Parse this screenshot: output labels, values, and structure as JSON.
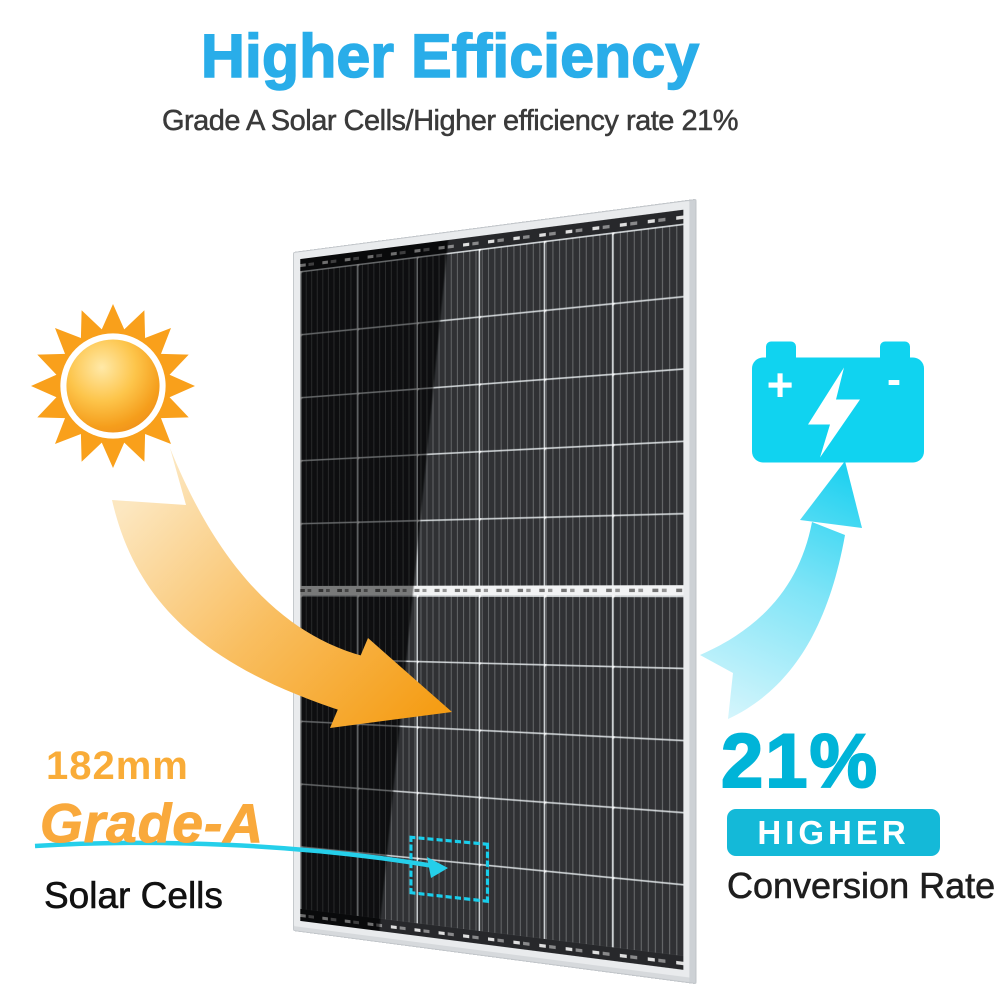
{
  "header": {
    "title": "Higher Efficiency",
    "subtitle": "Grade A Solar Cells/Higher efficiency rate 21%"
  },
  "left_callout": {
    "size_label": "182mm",
    "grade_label": "Grade-A",
    "cells_label": "Solar Cells"
  },
  "right_callout": {
    "percent": "21%",
    "badge": "HIGHER",
    "rate_label": "Conversion Rate"
  },
  "battery": {
    "positive": "+",
    "negative": "-"
  },
  "icons": {
    "sun": "sun-icon",
    "battery": "battery-charge-icon",
    "bolt": "lightning-bolt-icon",
    "sun_to_panel": "orange-curved-arrow",
    "panel_to_battery": "cyan-curved-arrow",
    "cell_highlight": "dashed-cell-box"
  },
  "colors": {
    "title_blue": "#29ADE9",
    "accent_cyan": "#00B4D8",
    "badge_cyan": "#14B9D8",
    "bright_cyan": "#10D3F0",
    "accent_orange": "#F9A838",
    "sun_orange": "#F9A01B",
    "panel_black": "#1B1D20",
    "frame_silver": "#E9EBED",
    "text_dark": "#3A3A3A"
  }
}
